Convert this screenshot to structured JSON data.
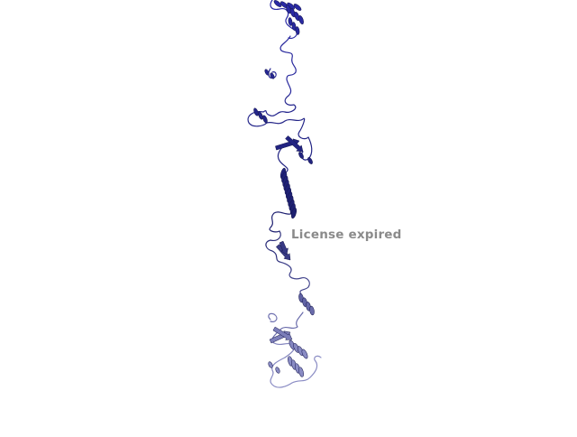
{
  "viewer": {
    "watermark_text": "License expired",
    "watermark_color": "#8a8a8a",
    "background_color": "#ffffff"
  },
  "structure": {
    "representation": "cartoon",
    "color_top": "#2a2aa6",
    "color_mid": "#1e2070",
    "color_bottom": "#8a8cc4"
  }
}
